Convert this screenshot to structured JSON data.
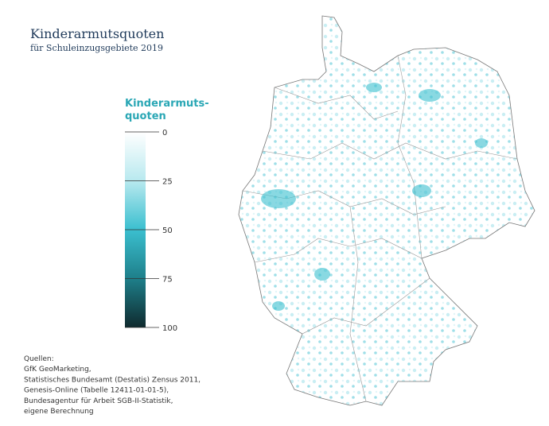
{
  "map": {
    "title": "Kinderarmutsquoten",
    "subtitle": "für Schuleinzugsgebiete 2019",
    "legend": {
      "title": [
        "Kinderarmuts-",
        "quoten"
      ],
      "range": [
        0,
        100
      ],
      "ticks": [
        0,
        25,
        50,
        75,
        100
      ],
      "colors": [
        "#ffffff",
        "#b8e9ef",
        "#3bbfcf",
        "#1e7f8a",
        "#0f2a2e"
      ]
    },
    "sources": [
      "Quellen:",
      "GfK GeoMarketing,",
      "Statistisches Bundesamt (Destatis) Zensus 2011,",
      "Genesis-Online (Tabelle 12411-01-01-5),",
      "Bundesagentur für Arbeit SGB-II-Statistik,",
      "eigene Berechnung"
    ]
  }
}
